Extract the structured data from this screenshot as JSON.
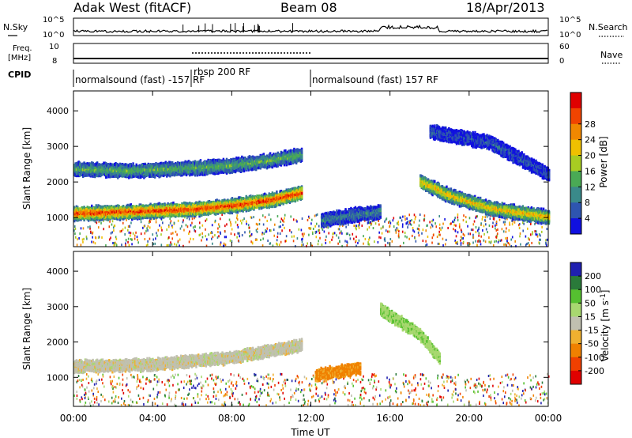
{
  "header": {
    "station": "Adak West (fitACF)",
    "beam": "Beam 08",
    "date": "18/Apr/2013"
  },
  "top_panels": {
    "nsky_label": "N.Sky",
    "nsky_ticks": [
      "10^5",
      "10^0"
    ],
    "nsearch_label": "N.Search",
    "nsearch_ticks": [
      "10^5",
      "10^0"
    ],
    "freq_label_1": "Freq.",
    "freq_label_2": "[MHz]",
    "freq_ticks": [
      "10",
      "8"
    ],
    "nave_label": "Nave",
    "nave_ticks": [
      "60",
      "0"
    ],
    "cpid_label": "CPID",
    "cpid_segments": [
      "normalsound (fast) -157 RF",
      "rbsp 200 RF",
      "normalsound (fast) 157 RF"
    ]
  },
  "colors": {
    "power_scale": [
      "#1010e0",
      "#2e55b0",
      "#3a8a8a",
      "#4aaa55",
      "#a8cc22",
      "#f0c000",
      "#f08800",
      "#f04400",
      "#e00000"
    ],
    "velocity_scale": [
      "#2020b0",
      "#2a7a3a",
      "#55c030",
      "#a8d870",
      "#c0c0b0",
      "#f0b030",
      "#f08000",
      "#f04000",
      "#e00000"
    ]
  },
  "chart_data": [
    {
      "type": "heatmap",
      "panel": "power",
      "ylabel": "Slant Range [km]",
      "yticks": [
        "1000",
        "2000",
        "3000",
        "4000"
      ],
      "ylim": [
        180,
        4560
      ],
      "xlim_hours": [
        0,
        24
      ],
      "colorbar_label": "Power [dB]",
      "colorbar_ticks": [
        "4",
        "8",
        "12",
        "16",
        "20",
        "24",
        "28"
      ],
      "colorbar_range": [
        0,
        30
      ],
      "bands": [
        {
          "t": [
            0,
            3,
            6,
            8,
            10,
            11.5
          ],
          "range": [
            1100,
            1150,
            1220,
            1320,
            1480,
            1680
          ],
          "level": 27
        },
        {
          "t": [
            0,
            3,
            6,
            8,
            10,
            11.5
          ],
          "range": [
            2350,
            2300,
            2380,
            2450,
            2600,
            2750
          ],
          "level": 12
        },
        {
          "t": [
            12.5,
            14,
            15.5
          ],
          "range": [
            900,
            1050,
            1150
          ],
          "level": 8
        },
        {
          "t": [
            17.5,
            19,
            21,
            24
          ],
          "range": [
            2000,
            1600,
            1250,
            1000
          ],
          "level": 20
        },
        {
          "t": [
            18,
            21,
            24
          ],
          "range": [
            3400,
            3100,
            2200
          ],
          "level": 5
        }
      ]
    },
    {
      "type": "heatmap",
      "panel": "velocity",
      "ylabel": "Slant Range [km]",
      "yticks": [
        "1000",
        "2000",
        "3000",
        "4000"
      ],
      "ylim": [
        180,
        4560
      ],
      "xlabel": "Time UT",
      "xticks": [
        "00:00",
        "04:00",
        "08:00",
        "12:00",
        "16:00",
        "20:00",
        "00:00"
      ],
      "xlim_hours": [
        0,
        24
      ],
      "colorbar_label": "Velocity [m s^-1]",
      "colorbar_ticks": [
        "200",
        "100",
        "50",
        "15",
        "-15",
        "-50",
        "-100",
        "-200"
      ],
      "colorbar_range": [
        -250,
        250
      ],
      "bands": [
        {
          "t": [
            0,
            4,
            8,
            11.5
          ],
          "range": [
            1300,
            1350,
            1550,
            1900
          ],
          "velocity": 0
        },
        {
          "t": [
            12.2,
            13.3,
            14.5
          ],
          "range": [
            1050,
            1150,
            1250
          ],
          "velocity": -60
        },
        {
          "t": [
            15.5,
            17.5,
            18.5
          ],
          "range": [
            2900,
            2200,
            1500
          ],
          "velocity": 40
        }
      ]
    }
  ]
}
